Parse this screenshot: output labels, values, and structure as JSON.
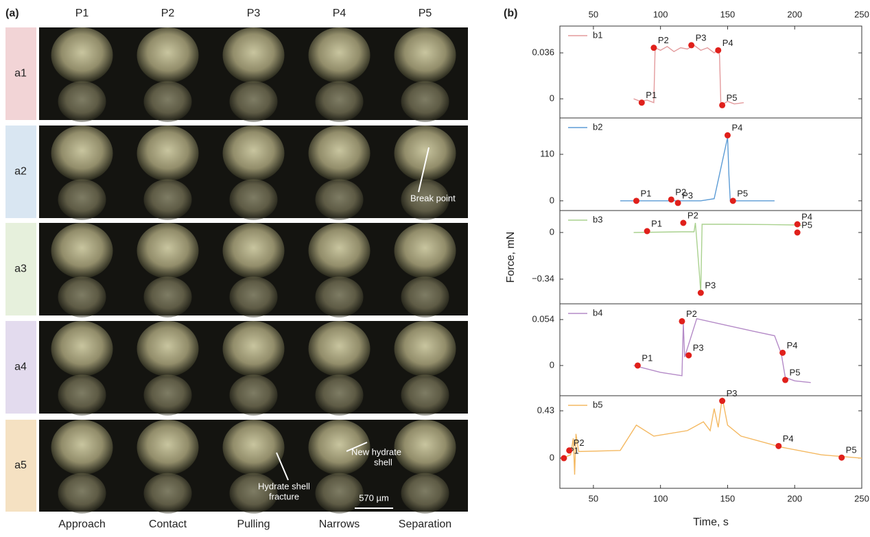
{
  "panel_a": {
    "label": "(a)",
    "columns": [
      "P1",
      "P2",
      "P3",
      "P4",
      "P5"
    ],
    "rows": [
      "a1",
      "a2",
      "a3",
      "a4",
      "a5"
    ],
    "captions": [
      "Approach",
      "Contact",
      "Pulling",
      "Narrows",
      "Separation"
    ],
    "annotations": {
      "break_point": "Break point",
      "new_shell": [
        "New hydrate",
        "shell"
      ],
      "fracture": [
        "Hydrate shell",
        "fracture"
      ],
      "scale_bar": "570 µm"
    }
  },
  "panel_b": {
    "label": "(b)",
    "ylabel": "Force, mN"
  },
  "chart_data": [
    {
      "type": "line",
      "xlim": [
        25,
        250
      ],
      "xticks": [
        50,
        100,
        150,
        200,
        250
      ],
      "ylim": [
        -0.015,
        0.057
      ],
      "yticks": [
        0,
        0.036
      ],
      "x": [
        80,
        85,
        90,
        95,
        96,
        100,
        105,
        110,
        115,
        120,
        125,
        130,
        135,
        140,
        143,
        144,
        145,
        150,
        155,
        162
      ],
      "series": [
        {
          "name": "b1",
          "color": "#e39a9c",
          "values": [
            0,
            -0.002,
            -0.001,
            -0.003,
            0.04,
            0.038,
            0.041,
            0.037,
            0.04,
            0.039,
            0.042,
            0.038,
            0.04,
            0.036,
            0.039,
            0.034,
            -0.005,
            -0.002,
            -0.004,
            -0.003
          ]
        }
      ],
      "points": {
        "color": "#e0201b",
        "labels": [
          "P1",
          "P2",
          "P3",
          "P4",
          "P5"
        ],
        "x": [
          86,
          95,
          123,
          143,
          146
        ],
        "values": [
          -0.003,
          0.04,
          0.042,
          0.038,
          -0.005
        ]
      }
    },
    {
      "type": "line",
      "xlim": [
        25,
        250
      ],
      "ylim": [
        -23,
        196
      ],
      "yticks": [
        0,
        110
      ],
      "x": [
        70,
        100,
        130,
        140,
        150,
        151,
        152,
        160,
        185
      ],
      "series": [
        {
          "name": "b2",
          "color": "#5b9bd5",
          "values": [
            0,
            0,
            0,
            5,
            150,
            60,
            0,
            0,
            0
          ]
        }
      ],
      "points": {
        "color": "#e0201b",
        "labels": [
          "P1",
          "P2",
          "P3",
          "P4",
          "P5"
        ],
        "x": [
          82,
          108,
          113,
          150,
          154
        ],
        "values": [
          0,
          3,
          -5,
          155,
          0
        ]
      }
    },
    {
      "type": "line",
      "xlim": [
        25,
        250
      ],
      "ylim": [
        -0.52,
        0.16
      ],
      "yticks": [
        {
          "value": -0.34,
          "label": "−0.34"
        },
        0
      ],
      "x": [
        80,
        116,
        125,
        126,
        129,
        130,
        131,
        150,
        180,
        200,
        205
      ],
      "series": [
        {
          "name": "b3",
          "color": "#a9d18e",
          "values": [
            0,
            0.005,
            0.005,
            0.07,
            -0.3,
            -0.44,
            0.06,
            0.06,
            0.058,
            0.055,
            0.05
          ]
        }
      ],
      "points": {
        "color": "#e0201b",
        "labels": [
          "P1",
          "P2",
          "P3",
          "P4",
          "P5"
        ],
        "x": [
          90,
          117,
          130,
          202,
          202
        ],
        "values": [
          0.01,
          0.07,
          -0.44,
          0.06,
          0
        ]
      }
    },
    {
      "type": "line",
      "xlim": [
        25,
        250
      ],
      "ylim": [
        -0.0355,
        0.0725
      ],
      "yticks": [
        0,
        0.054
      ],
      "x": [
        80,
        100,
        116,
        117,
        118,
        125,
        127,
        150,
        170,
        185,
        190,
        193,
        200,
        212
      ],
      "series": [
        {
          "name": "b4",
          "color": "#b48ac7",
          "values": [
            0,
            -0.008,
            -0.012,
            0.05,
            0.01,
            0.045,
            0.055,
            0.047,
            0.04,
            0.035,
            0.014,
            -0.014,
            -0.018,
            -0.02
          ]
        }
      ],
      "points": {
        "color": "#e0201b",
        "labels": [
          "P1",
          "P2",
          "P3",
          "P4",
          "P5"
        ],
        "x": [
          83,
          116,
          121,
          191,
          193
        ],
        "values": [
          0,
          0.052,
          0.012,
          0.015,
          -0.017
        ]
      }
    },
    {
      "type": "line",
      "xlim": [
        25,
        250
      ],
      "xticks": [
        50,
        100,
        150,
        200,
        250
      ],
      "xlabel": "Time, s",
      "ylim": [
        -0.274,
        0.567
      ],
      "yticks": [
        0,
        0.43
      ],
      "x": [
        27,
        33,
        35,
        36,
        37,
        39,
        70,
        82,
        95,
        120,
        132,
        137,
        140,
        143,
        146,
        150,
        160,
        190,
        220,
        250
      ],
      "series": [
        {
          "name": "b5",
          "color": "#f4b860",
          "values": [
            0,
            0.03,
            0.18,
            -0.15,
            0.22,
            0.06,
            0.07,
            0.3,
            0.2,
            0.25,
            0.33,
            0.25,
            0.45,
            0.28,
            0.55,
            0.3,
            0.2,
            0.1,
            0.03,
            0
          ]
        }
      ],
      "points": {
        "color": "#e0201b",
        "labels": [
          "P1",
          "P2",
          "P3",
          "P4",
          "P5"
        ],
        "x": [
          28,
          32,
          146,
          188,
          235
        ],
        "values": [
          0,
          0.07,
          0.52,
          0.11,
          0.005
        ]
      }
    }
  ]
}
